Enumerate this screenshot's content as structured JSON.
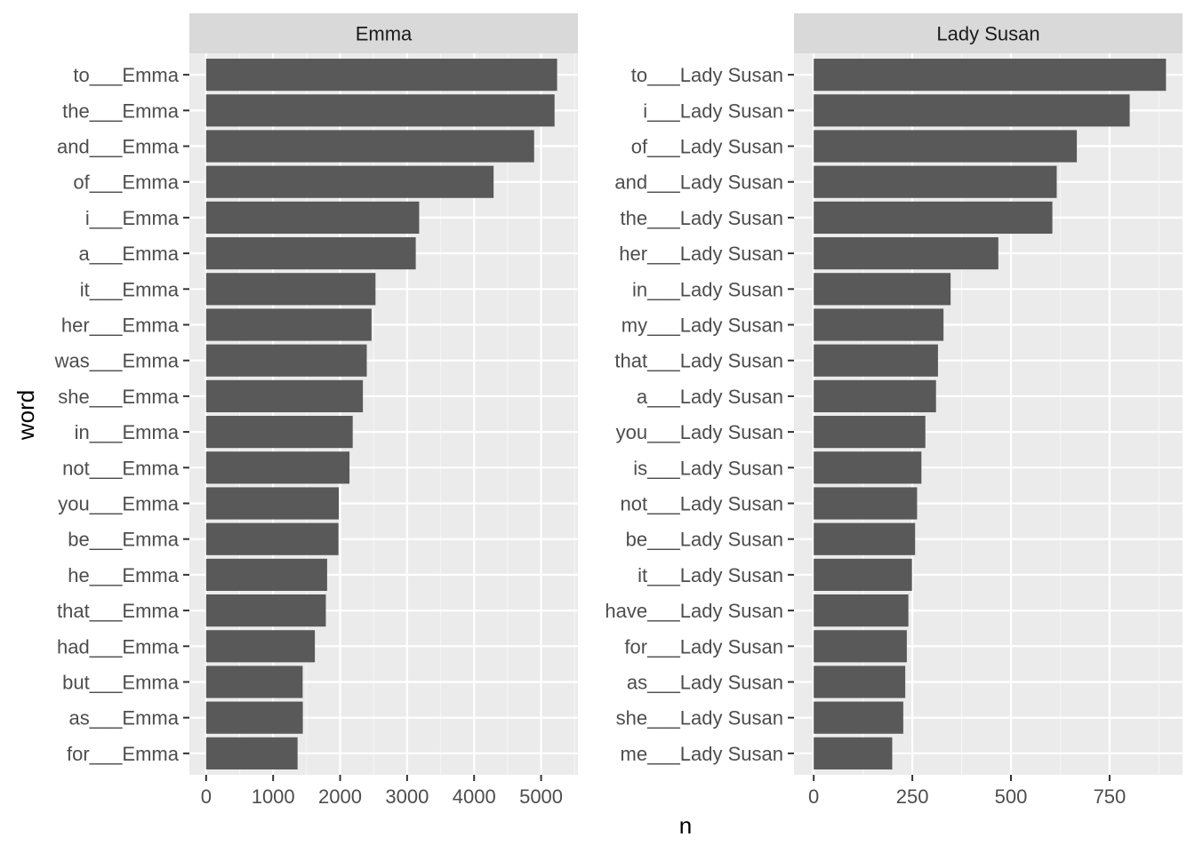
{
  "chart_data": {
    "type": "bar",
    "orientation": "horizontal",
    "xlabel": "n",
    "ylabel": "word",
    "grid": true,
    "facets": [
      {
        "title": "Emma",
        "xlim": [
          -250,
          5550
        ],
        "xticks": [
          0,
          1000,
          2000,
          3000,
          4000,
          5000
        ],
        "xtick_labels": [
          "0",
          "1000",
          "2000",
          "3000",
          "4000",
          "5000"
        ],
        "categories": [
          "to___Emma",
          "the___Emma",
          "and___Emma",
          "of___Emma",
          "i___Emma",
          "a___Emma",
          "it___Emma",
          "her___Emma",
          "was___Emma",
          "she___Emma",
          "in___Emma",
          "not___Emma",
          "you___Emma",
          "be___Emma",
          "he___Emma",
          "that___Emma",
          "had___Emma",
          "but___Emma",
          "as___Emma",
          "for___Emma"
        ],
        "values": [
          5239,
          5201,
          4896,
          4291,
          3180,
          3129,
          2528,
          2469,
          2398,
          2340,
          2188,
          2140,
          1980,
          1975,
          1806,
          1787,
          1623,
          1441,
          1443,
          1365
        ]
      },
      {
        "title": "Lady Susan",
        "xlim": [
          -50,
          935
        ],
        "xticks": [
          0,
          250,
          500,
          750
        ],
        "xtick_labels": [
          "0",
          "250",
          "500",
          "750"
        ],
        "categories": [
          "to___Lady Susan",
          "i___Lady Susan",
          "of___Lady Susan",
          "and___Lady Susan",
          "the___Lady Susan",
          "her___Lady Susan",
          "in___Lady Susan",
          "my___Lady Susan",
          "that___Lady Susan",
          "a___Lady Susan",
          "you___Lady Susan",
          "is___Lady Susan",
          "not___Lady Susan",
          "be___Lady Susan",
          "it___Lady Susan",
          "have___Lady Susan",
          "for___Lady Susan",
          "as___Lady Susan",
          "she___Lady Susan",
          "me___Lady Susan"
        ],
        "values": [
          893,
          801,
          667,
          616,
          605,
          468,
          347,
          329,
          315,
          310,
          283,
          273,
          262,
          257,
          249,
          240,
          236,
          232,
          227,
          199
        ]
      }
    ],
    "colors": {
      "bar": "#595959",
      "panel_background": "#ebebeb",
      "strip_background": "#d9d9d9",
      "grid_major": "#ffffff",
      "grid_minor": "#f5f5f5"
    }
  }
}
